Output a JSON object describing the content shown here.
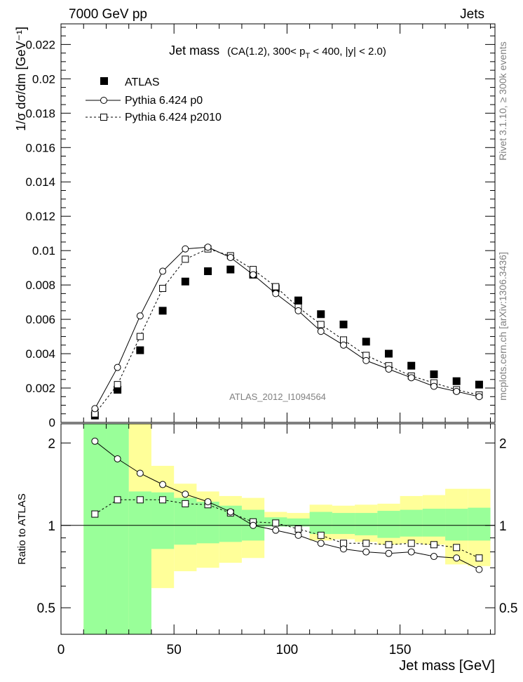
{
  "header": {
    "left": "7000 GeV pp",
    "right": "Jets"
  },
  "side_labels": {
    "rivet": "Rivet 3.1.10, ≥ 300k events",
    "mcplots": "mcplots.cern.ch [arXiv:1306.3436]"
  },
  "chart_data": [
    {
      "type": "scatter",
      "title_main": "Jet mass",
      "title_sub": "(CA(1.2), 300< p",
      "title_sub_idx": "T",
      "title_sub_tail": " < 400, |y| < 2.0)",
      "ylabel": "1/σ dσ/dm [GeV⁻¹]",
      "analysis_tag": "ATLAS_2012_I1094564",
      "xlim": [
        0,
        192
      ],
      "ylim": [
        0,
        0.0232
      ],
      "yticks": [
        "0.002",
        "0.004",
        "0.006",
        "0.008",
        "0.01",
        "0.012",
        "0.014",
        "0.016",
        "0.018",
        "0.02",
        "0.022"
      ],
      "x": [
        15,
        25,
        35,
        45,
        55,
        65,
        75,
        85,
        95,
        105,
        115,
        125,
        135,
        145,
        155,
        165,
        175,
        185
      ],
      "series": [
        {
          "name": "ATLAS",
          "marker": "filled-square",
          "values": [
            0.0004,
            0.0019,
            0.0042,
            0.0065,
            0.0082,
            0.0088,
            0.0089,
            0.0086,
            0.0078,
            0.0071,
            0.0063,
            0.0057,
            0.0047,
            0.004,
            0.0033,
            0.0028,
            0.0024,
            0.0022
          ]
        },
        {
          "name": "Pythia 6.424 p0",
          "marker": "open-circle",
          "line": "solid",
          "values": [
            0.0008,
            0.0032,
            0.0062,
            0.0088,
            0.0101,
            0.0102,
            0.0096,
            0.0086,
            0.0075,
            0.0065,
            0.0053,
            0.0045,
            0.0036,
            0.0031,
            0.0026,
            0.0021,
            0.0018,
            0.0015
          ]
        },
        {
          "name": "Pythia 6.424 p2010",
          "marker": "open-square",
          "line": "dashed",
          "values": [
            0.0005,
            0.0022,
            0.005,
            0.0078,
            0.0095,
            0.0101,
            0.0097,
            0.0089,
            0.0079,
            0.0067,
            0.0057,
            0.0048,
            0.0039,
            0.0033,
            0.0027,
            0.0023,
            0.0019,
            0.0016
          ]
        }
      ]
    },
    {
      "type": "scatter",
      "ylabel": "Ratio to ATLAS",
      "xlabel": "Jet mass [GeV]",
      "xlim": [
        0,
        192
      ],
      "ylim": [
        0.4,
        2.35
      ],
      "xticks": [
        "0",
        "50",
        "100",
        "150"
      ],
      "yticks": [
        "0.5",
        "1",
        "2"
      ],
      "band_bins": [
        [
          10,
          20
        ],
        [
          20,
          30
        ],
        [
          30,
          40
        ],
        [
          40,
          50
        ],
        [
          50,
          60
        ],
        [
          60,
          70
        ],
        [
          70,
          80
        ],
        [
          80,
          90
        ],
        [
          90,
          100
        ],
        [
          100,
          110
        ],
        [
          110,
          120
        ],
        [
          120,
          130
        ],
        [
          130,
          140
        ],
        [
          140,
          150
        ],
        [
          150,
          160
        ],
        [
          160,
          170
        ],
        [
          170,
          180
        ],
        [
          180,
          190
        ]
      ],
      "band_stat": [
        [
          0.3,
          2.35
        ],
        [
          0.3,
          2.35
        ],
        [
          0.3,
          1.33
        ],
        [
          0.82,
          1.32
        ],
        [
          0.85,
          1.26
        ],
        [
          0.86,
          1.22
        ],
        [
          0.87,
          1.18
        ],
        [
          0.88,
          1.14
        ],
        [
          0.99,
          1.07
        ],
        [
          0.99,
          1.06
        ],
        [
          0.93,
          1.12
        ],
        [
          0.93,
          1.11
        ],
        [
          0.92,
          1.11
        ],
        [
          0.9,
          1.13
        ],
        [
          0.91,
          1.14
        ],
        [
          0.91,
          1.15
        ],
        [
          0.88,
          1.15
        ],
        [
          0.88,
          1.16
        ]
      ],
      "band_total": [
        [
          0.3,
          2.35
        ],
        [
          0.3,
          2.35
        ],
        [
          0.3,
          2.35
        ],
        [
          0.59,
          1.65
        ],
        [
          0.68,
          1.42
        ],
        [
          0.7,
          1.33
        ],
        [
          0.73,
          1.28
        ],
        [
          0.76,
          1.26
        ],
        [
          0.99,
          1.12
        ],
        [
          0.99,
          1.11
        ],
        [
          0.88,
          1.19
        ],
        [
          0.89,
          1.18
        ],
        [
          0.87,
          1.19
        ],
        [
          0.85,
          1.2
        ],
        [
          0.86,
          1.28
        ],
        [
          0.85,
          1.29
        ],
        [
          0.72,
          1.36
        ],
        [
          0.71,
          1.36
        ]
      ],
      "x": [
        15,
        25,
        35,
        45,
        55,
        65,
        75,
        85,
        95,
        105,
        115,
        125,
        135,
        145,
        155,
        165,
        175,
        185
      ],
      "series": [
        {
          "name": "Pythia 6.424 p0",
          "values": [
            2.03,
            1.75,
            1.55,
            1.41,
            1.3,
            1.22,
            1.12,
            1.0,
            0.96,
            0.92,
            0.86,
            0.82,
            0.8,
            0.79,
            0.8,
            0.77,
            0.76,
            0.69
          ]
        },
        {
          "name": "Pythia 6.424 p2010",
          "values": [
            1.1,
            1.24,
            1.24,
            1.24,
            1.2,
            1.19,
            1.11,
            1.03,
            1.02,
            0.97,
            0.92,
            0.86,
            0.86,
            0.85,
            0.86,
            0.85,
            0.83,
            0.76
          ]
        }
      ]
    }
  ],
  "colors": {
    "band_stat": "#99ff99",
    "band_total": "#ffff99",
    "data": "#000000",
    "annotation": "#808080"
  }
}
